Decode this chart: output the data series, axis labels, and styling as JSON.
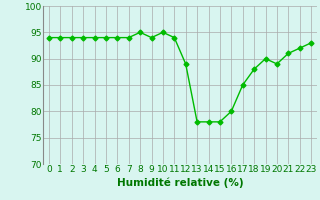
{
  "x": [
    0,
    1,
    2,
    3,
    4,
    5,
    6,
    7,
    8,
    9,
    10,
    11,
    12,
    13,
    14,
    15,
    16,
    17,
    18,
    19,
    20,
    21,
    22,
    23
  ],
  "y": [
    94,
    94,
    94,
    94,
    94,
    94,
    94,
    94,
    95,
    94,
    95,
    94,
    89,
    78,
    78,
    78,
    80,
    85,
    88,
    90,
    89,
    91,
    92,
    93
  ],
  "line_color": "#00bb00",
  "marker": "D",
  "marker_size": 2.5,
  "bg_color": "#d8f5f0",
  "grid_color": "#aaaaaa",
  "xlabel": "Humidité relative (%)",
  "xlabel_color": "#007700",
  "xlabel_fontsize": 7.5,
  "tick_color": "#007700",
  "tick_fontsize": 6.5,
  "ylim": [
    70,
    100
  ],
  "xlim": [
    -0.5,
    23.5
  ],
  "yticks": [
    70,
    75,
    80,
    85,
    90,
    95,
    100
  ],
  "xticks": [
    0,
    1,
    2,
    3,
    4,
    5,
    6,
    7,
    8,
    9,
    10,
    11,
    12,
    13,
    14,
    15,
    16,
    17,
    18,
    19,
    20,
    21,
    22,
    23
  ]
}
